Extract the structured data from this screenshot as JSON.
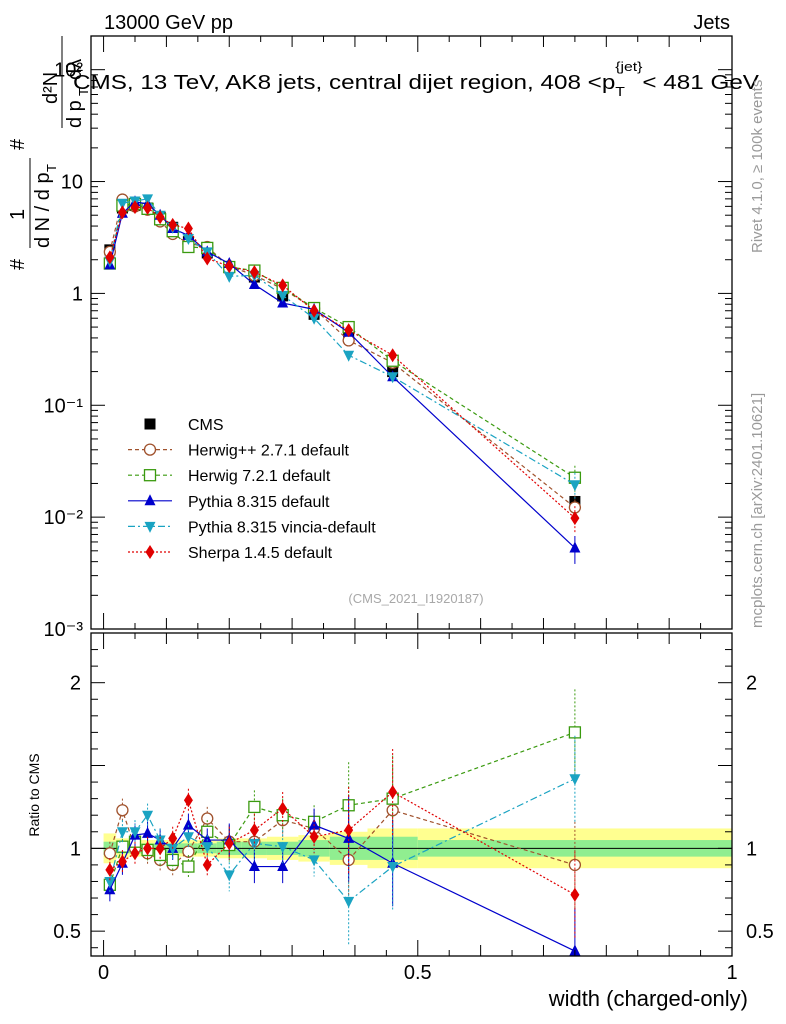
{
  "header": {
    "left": "13000 GeV pp",
    "right": "Jets"
  },
  "side_text": {
    "rivet": "Rivet 4.1.0, ≥ 100k events",
    "mcplots": "mcplots.cern.ch [arXiv:2401.10621]"
  },
  "chart_data": [
    {
      "type": "line",
      "panel": "main",
      "title": "CMS, 13 TeV, AK8 jets, central dijet region, 408 < p_T^{jet} < 481 GeV",
      "title_parts": {
        "pre": "CMS, 13 TeV, AK8 jets, central dijet region, 408 <",
        "p": "p",
        "sub": "T",
        "sup": "{jet}",
        "post": "< 481 GeV"
      },
      "ylabel": "1/N dN/d p_T dλ",
      "ylabel_parts": {
        "a": "#",
        "b": "1",
        "c": "d N / d p",
        "d": "T",
        "e": "#",
        "f": "d²N",
        "g": "d p",
        "h": "T",
        "i": "dλ"
      },
      "yscale": "log",
      "ylim": [
        0.001,
        200
      ],
      "xlim": [
        -0.02,
        1.0
      ],
      "y_ticks": [
        {
          "v": 0.001,
          "label": "10⁻³"
        },
        {
          "v": 0.01,
          "label": "10⁻²"
        },
        {
          "v": 0.1,
          "label": "10⁻¹"
        },
        {
          "v": 1,
          "label": "1"
        },
        {
          "v": 10,
          "label": "10"
        },
        {
          "v": 100,
          "label": "10²"
        }
      ],
      "watermark": "(CMS_2021_I1920187)",
      "legend_position": "center-left",
      "x": [
        0.01,
        0.03,
        0.05,
        0.07,
        0.09,
        0.11,
        0.135,
        0.165,
        0.2,
        0.24,
        0.285,
        0.335,
        0.39,
        0.46,
        0.75
      ],
      "series": [
        {
          "name": "CMS",
          "color": "#000000",
          "marker": "square-filled",
          "dash": "none",
          "values": [
            2.45,
            5.8,
            6.1,
            5.8,
            4.8,
            3.9,
            2.9,
            2.3,
            1.7,
            1.4,
            0.95,
            0.65,
            0.42,
            0.2,
            0.0138
          ]
        },
        {
          "name": "Herwig++ 2.7.1 default",
          "color": "#a0522d",
          "marker": "circle-open",
          "dash": "4,3",
          "values": [
            2.35,
            6.9,
            6.0,
            5.6,
            4.4,
            3.4,
            2.8,
            2.6,
            1.75,
            1.45,
            1.1,
            0.73,
            0.38,
            0.24,
            0.0122
          ]
        },
        {
          "name": "Herwig 7.2.1 default",
          "color": "#3a9a0f",
          "marker": "square-open",
          "dash": "4,3",
          "values": [
            1.85,
            6.1,
            6.3,
            5.7,
            4.6,
            3.6,
            2.6,
            2.55,
            1.72,
            1.6,
            1.12,
            0.74,
            0.5,
            0.25,
            0.0225
          ]
        },
        {
          "name": "Pythia 8.315 default",
          "color": "#0000cc",
          "marker": "triangle-up",
          "dash": "none",
          "values": [
            1.8,
            5.2,
            6.6,
            6.3,
            5.0,
            3.8,
            3.3,
            2.35,
            1.85,
            1.2,
            0.82,
            0.72,
            0.45,
            0.18,
            0.0053
          ]
        },
        {
          "name": "Pythia 8.315 vincia-default",
          "color": "#1aa3c2",
          "marker": "triangle-down",
          "dash": "7,3,2,3",
          "values": [
            1.95,
            6.4,
            6.7,
            7.0,
            5.0,
            3.9,
            3.1,
            2.35,
            1.42,
            1.45,
            0.96,
            0.6,
            0.28,
            0.18,
            0.0195
          ]
        },
        {
          "name": "Sherpa 1.4.5 default",
          "color": "#e00000",
          "marker": "diamond",
          "dash": "2,2",
          "values": [
            2.1,
            5.3,
            5.9,
            5.8,
            4.8,
            4.1,
            3.8,
            2.05,
            1.75,
            1.55,
            1.18,
            0.7,
            0.47,
            0.28,
            0.0098
          ]
        }
      ]
    },
    {
      "type": "line",
      "panel": "ratio",
      "ylabel": "Ratio to CMS",
      "xlabel": "width (charged-only)",
      "ylim": [
        0.35,
        2.3
      ],
      "xlim": [
        -0.02,
        1.0
      ],
      "y_ticks": [
        {
          "v": 0.5,
          "label": "0.5"
        },
        {
          "v": 1,
          "label": "1"
        },
        {
          "v": 2,
          "label": "2"
        }
      ],
      "x_ticks": [
        {
          "v": 0,
          "label": "0"
        },
        {
          "v": 0.5,
          "label": "0.5"
        },
        {
          "v": 1,
          "label": "1"
        }
      ],
      "x": [
        0.01,
        0.03,
        0.05,
        0.07,
        0.09,
        0.11,
        0.135,
        0.165,
        0.2,
        0.24,
        0.285,
        0.335,
        0.39,
        0.46,
        0.75
      ],
      "bin_edges": [
        0.0,
        0.02,
        0.04,
        0.06,
        0.08,
        0.1,
        0.12,
        0.15,
        0.18,
        0.22,
        0.26,
        0.31,
        0.36,
        0.42,
        0.5,
        1.0
      ],
      "band_stat": [
        0.04,
        0.03,
        0.03,
        0.03,
        0.03,
        0.03,
        0.03,
        0.03,
        0.04,
        0.04,
        0.04,
        0.05,
        0.07,
        0.07,
        0.05
      ],
      "band_total": [
        0.09,
        0.06,
        0.05,
        0.05,
        0.05,
        0.05,
        0.05,
        0.05,
        0.06,
        0.06,
        0.07,
        0.08,
        0.1,
        0.12,
        0.12
      ],
      "series": [
        {
          "name": "Herwig++ 2.7.1 default",
          "values": [
            0.97,
            1.23,
            1.0,
            0.97,
            0.93,
            0.9,
            0.98,
            1.18,
            1.04,
            1.04,
            1.17,
            1.12,
            0.93,
            1.23,
            0.9
          ]
        },
        {
          "name": "Herwig 7.2.1 default",
          "values": [
            0.78,
            1.01,
            1.04,
            0.99,
            0.96,
            0.93,
            0.89,
            1.1,
            1.02,
            1.25,
            1.2,
            1.16,
            1.26,
            1.3,
            1.7
          ]
        },
        {
          "name": "Pythia 8.315 default",
          "values": [
            0.75,
            0.91,
            1.08,
            1.09,
            1.05,
            1.0,
            1.14,
            1.05,
            1.05,
            0.89,
            0.89,
            1.14,
            1.06,
            0.91,
            0.38
          ]
        },
        {
          "name": "Pythia 8.315 vincia-default",
          "values": [
            0.8,
            1.1,
            1.1,
            1.2,
            1.05,
            1.0,
            1.07,
            1.01,
            0.84,
            1.03,
            1.01,
            0.93,
            0.68,
            0.89,
            1.42
          ]
        },
        {
          "name": "Sherpa 1.4.5 default",
          "values": [
            0.87,
            0.92,
            0.97,
            1.0,
            1.0,
            1.06,
            1.29,
            0.9,
            1.03,
            1.11,
            1.24,
            1.07,
            1.11,
            1.34,
            0.72
          ]
        }
      ]
    }
  ]
}
